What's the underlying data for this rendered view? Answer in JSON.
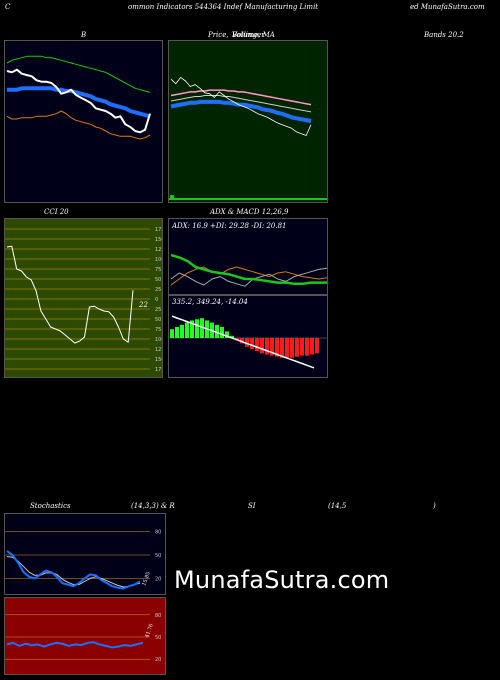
{
  "header": {
    "left": "C",
    "middle": "ommon  Indicators 544364  Indef  Manufacturing Limit",
    "right": "ed MunafaSutra.com"
  },
  "titles": {
    "bollinger": "B",
    "price_ma_a": "Price,",
    "price_ma_b": "Volume, MA",
    "price_ma_overlay": "Bollinger",
    "bands": "Bands 20.2",
    "cci": "CCI 20",
    "adx_macd": "ADX  & MACD 12,26,9",
    "stoch": "Stochastics",
    "stoch_params": "(14,3,3) & R",
    "rsi": "SI",
    "rsi_params": "(14,5",
    "rsi_close": ")"
  },
  "watermark": "MunafaSutra.com",
  "colors": {
    "navy_bg": "#000018",
    "green_bg": "#002400",
    "olive_bg": "#2d4a00",
    "red_bg": "#8b0000",
    "blue_line": "#1e6fff",
    "green_line": "#19c819",
    "orange_line": "#d97a1a",
    "white_line": "#ffffff"
  },
  "chart_data": [
    {
      "type": "line",
      "panel": "bollinger",
      "series": [
        {
          "values": [
            100,
            99,
            101,
            98,
            97,
            96,
            93,
            92,
            92,
            91,
            88,
            83,
            84,
            86,
            82,
            80,
            78,
            76,
            72,
            71,
            70,
            68,
            65,
            66,
            60,
            58,
            55,
            54,
            56,
            68
          ]
        },
        {
          "values": [
            86,
            86,
            86,
            87,
            87,
            87,
            87,
            87,
            87,
            87,
            86,
            86,
            85,
            85,
            84,
            83,
            82,
            81,
            79,
            78,
            77,
            75,
            74,
            73,
            72,
            70,
            69,
            68,
            67,
            66
          ]
        },
        {
          "values": [
            106,
            108,
            109,
            110,
            111,
            111,
            111,
            111,
            110,
            110,
            109,
            108,
            107,
            106,
            105,
            104,
            103,
            102,
            101,
            100,
            99,
            97,
            95,
            93,
            91,
            89,
            87,
            86,
            85,
            84
          ]
        },
        {
          "values": [
            66,
            64,
            64,
            65,
            65,
            65,
            66,
            66,
            66,
            67,
            68,
            70,
            68,
            65,
            63,
            62,
            61,
            60,
            58,
            57,
            55,
            53,
            52,
            51,
            51,
            51,
            50,
            49,
            50,
            52
          ]
        }
      ]
    },
    {
      "type": "line",
      "panel": "price_ma",
      "series": [
        {
          "values": [
            90,
            85,
            92,
            88,
            82,
            84,
            80,
            75,
            74,
            70,
            76,
            72,
            68,
            65,
            62,
            60,
            58,
            55,
            52,
            50,
            48,
            45,
            42,
            40,
            38,
            36,
            32,
            30,
            28,
            40
          ]
        },
        {
          "values": [
            60,
            61,
            62,
            63,
            64,
            64,
            65,
            65,
            65,
            65,
            65,
            64,
            64,
            63,
            62,
            62,
            61,
            60,
            59,
            57,
            56,
            55,
            53,
            52,
            50,
            48,
            47,
            46,
            45,
            44
          ]
        },
        {
          "values": [
            66,
            67,
            68,
            69,
            70,
            71,
            71,
            72,
            72,
            72,
            72,
            71,
            71,
            70,
            69,
            68,
            67,
            66,
            65,
            64,
            63,
            62,
            61,
            60,
            59,
            58,
            57,
            56,
            55,
            54
          ]
        },
        {
          "values": [
            72,
            73,
            74,
            75,
            76,
            76,
            77,
            77,
            78,
            78,
            78,
            78,
            77,
            77,
            76,
            76,
            75,
            74,
            73,
            72,
            71,
            70,
            69,
            68,
            67,
            66,
            65,
            64,
            63,
            62
          ]
        }
      ]
    },
    {
      "type": "line",
      "panel": "cci",
      "ylim": [
        -175,
        175
      ],
      "ticks": [
        "175",
        "150",
        "125",
        "100",
        "75",
        "50",
        "25",
        "0",
        "25",
        "50",
        "75",
        "100",
        "125",
        "150",
        "175"
      ],
      "last_label": "22",
      "series": [
        {
          "values": [
            130,
            132,
            75,
            70,
            55,
            48,
            20,
            -30,
            -50,
            -70,
            -75,
            -80,
            -90,
            -100,
            -110,
            -105,
            -95,
            -20,
            -18,
            -25,
            -30,
            -32,
            -45,
            -70,
            -100,
            -108,
            22
          ]
        }
      ]
    },
    {
      "type": "line",
      "panel": "adx",
      "label": "ADX: 16.9  +DI: 29.28  -DI: 20.81",
      "series": [
        {
          "values": [
            40,
            38,
            35,
            30,
            28,
            26,
            25,
            24,
            22,
            20,
            20,
            19,
            18,
            17,
            17,
            16,
            16,
            17,
            17,
            17
          ]
        },
        {
          "values": [
            20,
            25,
            22,
            18,
            15,
            20,
            22,
            18,
            16,
            14,
            20,
            22,
            24,
            20,
            18,
            22,
            24,
            26,
            28,
            29
          ]
        },
        {
          "values": [
            15,
            20,
            25,
            28,
            30,
            26,
            24,
            28,
            30,
            28,
            26,
            24,
            22,
            25,
            26,
            24,
            22,
            21,
            20,
            21
          ]
        }
      ]
    },
    {
      "type": "bar",
      "panel": "macd",
      "label": "335.2,  349.24,  -14.04",
      "values": [
        8,
        10,
        12,
        14,
        16,
        17,
        18,
        16,
        14,
        12,
        10,
        6,
        2,
        -2,
        -5,
        -8,
        -10,
        -12,
        -14,
        -15,
        -16,
        -17,
        -18,
        -18,
        -18,
        -17,
        -16,
        -16,
        -15,
        -14
      ]
    },
    {
      "type": "line",
      "panel": "stoch",
      "ylim": [
        0,
        100
      ],
      "ticks": [
        "80",
        "50",
        "20"
      ],
      "last_label": "15.85",
      "series": [
        {
          "values": [
            55,
            50,
            40,
            28,
            22,
            20,
            25,
            30,
            28,
            22,
            14,
            12,
            10,
            14,
            20,
            25,
            24,
            18,
            14,
            10,
            8,
            7,
            10,
            12,
            16
          ]
        },
        {
          "values": [
            48,
            47,
            42,
            35,
            28,
            24,
            24,
            27,
            27,
            25,
            19,
            15,
            12,
            12,
            16,
            20,
            22,
            20,
            17,
            14,
            11,
            9,
            10,
            12,
            14
          ]
        }
      ]
    },
    {
      "type": "line",
      "panel": "rsi",
      "ylim": [
        0,
        100
      ],
      "ticks": [
        "80",
        "50",
        "20"
      ],
      "last_label": "41.76",
      "series": [
        {
          "values": [
            40,
            42,
            38,
            41,
            39,
            40,
            37,
            40,
            42,
            41,
            38,
            40,
            39,
            42,
            43,
            40,
            38,
            36,
            37,
            39,
            38,
            40,
            42
          ]
        }
      ]
    }
  ]
}
